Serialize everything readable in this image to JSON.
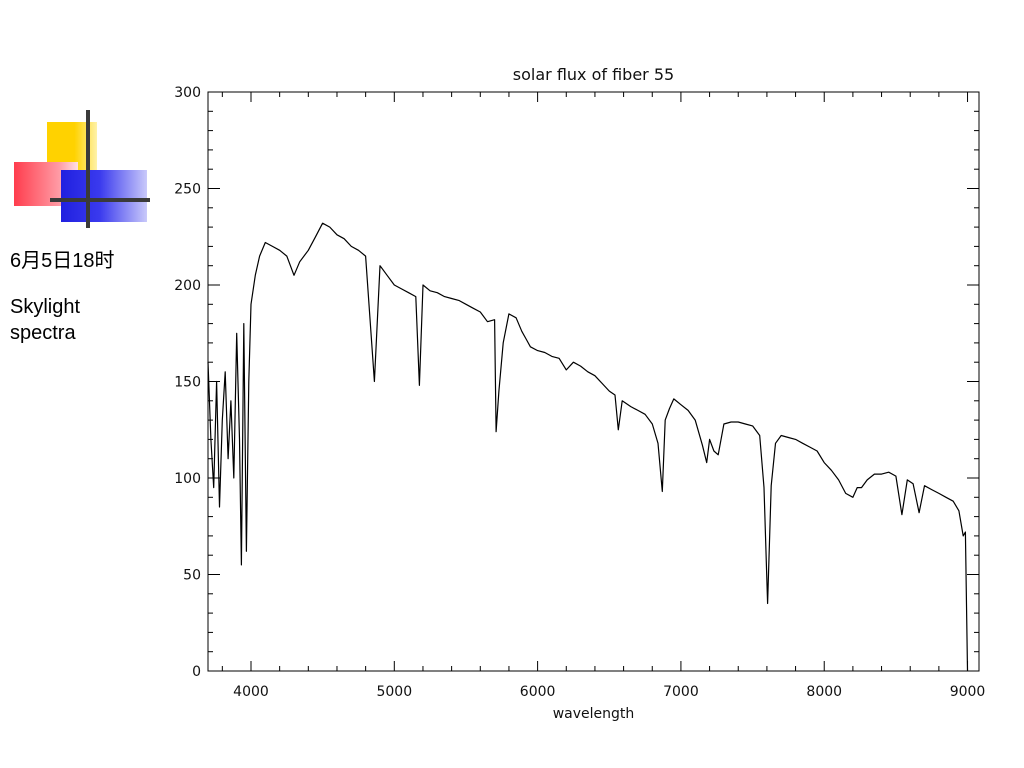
{
  "side_panel": {
    "date_label": "6月5日18时",
    "caption": "Skylight spectra"
  },
  "chart_data": {
    "type": "line",
    "title": "solar flux of fiber 55",
    "xlabel": "wavelength",
    "ylabel": "",
    "xlim": [
      3700,
      9080
    ],
    "ylim": [
      0,
      300
    ],
    "x_ticks": [
      4000,
      5000,
      6000,
      7000,
      8000,
      9000
    ],
    "y_ticks": [
      0,
      50,
      100,
      150,
      200,
      250,
      300
    ],
    "x_minor_step": 200,
    "y_minor_step": 10,
    "grid": false,
    "line_color": "#000000",
    "series": [
      {
        "x": [
          3700,
          3720,
          3740,
          3760,
          3780,
          3800,
          3820,
          3840,
          3860,
          3880,
          3900,
          3920,
          3933,
          3950,
          3968,
          3985,
          4000,
          4030,
          4060,
          4100,
          4150,
          4200,
          4250,
          4300,
          4340,
          4400,
          4450,
          4500,
          4550,
          4600,
          4650,
          4700,
          4750,
          4800,
          4861,
          4900,
          4950,
          5000,
          5050,
          5100,
          5150,
          5175,
          5200,
          5250,
          5300,
          5350,
          5400,
          5450,
          5500,
          5550,
          5600,
          5650,
          5700,
          5710,
          5730,
          5760,
          5800,
          5850,
          5890,
          5920,
          5950,
          6000,
          6050,
          6100,
          6150,
          6200,
          6250,
          6300,
          6350,
          6400,
          6450,
          6500,
          6540,
          6563,
          6590,
          6650,
          6700,
          6750,
          6800,
          6840,
          6870,
          6890,
          6920,
          6950,
          7000,
          7050,
          7100,
          7150,
          7180,
          7200,
          7230,
          7260,
          7300,
          7350,
          7400,
          7450,
          7500,
          7550,
          7580,
          7605,
          7630,
          7660,
          7700,
          7750,
          7800,
          7850,
          7900,
          7950,
          8000,
          8050,
          8100,
          8150,
          8200,
          8230,
          8260,
          8300,
          8350,
          8400,
          8450,
          8500,
          8542,
          8580,
          8620,
          8662,
          8700,
          8750,
          8800,
          8850,
          8900,
          8940,
          8970,
          8985,
          9000
        ],
        "y": [
          160,
          120,
          95,
          150,
          85,
          130,
          155,
          110,
          140,
          100,
          175,
          120,
          55,
          180,
          62,
          150,
          190,
          205,
          215,
          222,
          220,
          218,
          215,
          205,
          212,
          218,
          225,
          232,
          230,
          226,
          224,
          220,
          218,
          215,
          150,
          210,
          205,
          200,
          198,
          196,
          194,
          148,
          200,
          197,
          196,
          194,
          193,
          192,
          190,
          188,
          186,
          181,
          182,
          124,
          145,
          170,
          185,
          183,
          176,
          172,
          168,
          166,
          165,
          163,
          162,
          156,
          160,
          158,
          155,
          153,
          149,
          145,
          143,
          125,
          140,
          137,
          135,
          133,
          128,
          118,
          93,
          130,
          136,
          141,
          138,
          135,
          130,
          117,
          108,
          120,
          114,
          112,
          128,
          129,
          129,
          128,
          127,
          122,
          95,
          35,
          96,
          118,
          122,
          121,
          120,
          118,
          116,
          114,
          108,
          104,
          99,
          92,
          90,
          95,
          95,
          99,
          102,
          102,
          103,
          101,
          81,
          99,
          97,
          82,
          96,
          94,
          92,
          90,
          88,
          83,
          70,
          72,
          0
        ]
      }
    ]
  }
}
